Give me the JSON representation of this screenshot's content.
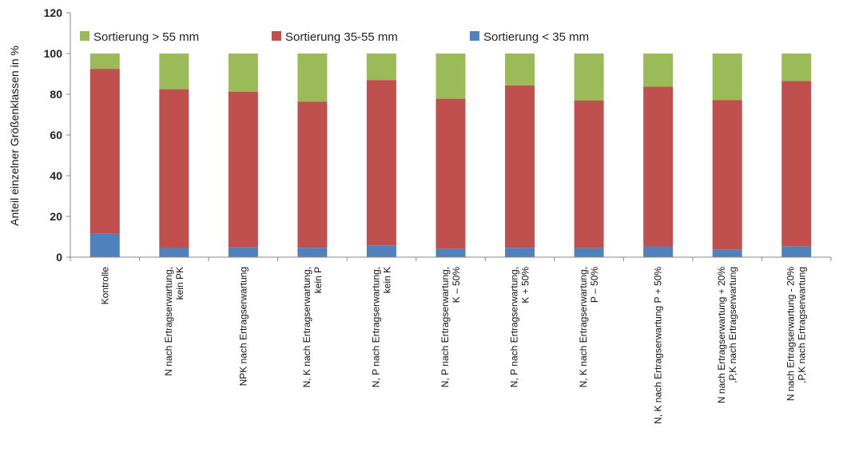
{
  "chart_data": {
    "type": "bar",
    "stacked": true,
    "ylabel": "Anteil einzelner Größenklassen in %",
    "xlabel": "",
    "ylim": [
      0,
      120
    ],
    "yticks": [
      0,
      20,
      40,
      60,
      80,
      100,
      120
    ],
    "grid": false,
    "legend_position": "top",
    "categories": [
      [
        "Kontrolle"
      ],
      [
        "N nach Ertragserwartung,",
        "kein PK"
      ],
      [
        "NPK nach Ertragserwartung"
      ],
      [
        "N, K nach Ertragserwartung,",
        "kein P"
      ],
      [
        "N, P nach Ertragserwartung,",
        "kein K"
      ],
      [
        "N, P nach Ertragserwartung,",
        "K – 50%"
      ],
      [
        "N, P nach Ertragserwartung,",
        "K + 50%"
      ],
      [
        "N, K nach Ertragserwartung,",
        "P – 50%"
      ],
      [
        "N, K nach Ertragserwartung P + 50%"
      ],
      [
        "N nach Ertragserwartung + 20%",
        ",P,K nach Ertragserwartung"
      ],
      [
        "N nach Ertragserwartung - 20%",
        ",P,K nach Ertragserwartung"
      ]
    ],
    "series": [
      {
        "name": "Sortierung < 35 mm",
        "color": "#4F81BD",
        "values": [
          11.5,
          4.5,
          4.8,
          4.6,
          5.8,
          4.2,
          4.6,
          4.4,
          5.3,
          3.8,
          5.4
        ]
      },
      {
        "name": "Sortierung 35-55 mm",
        "color": "#C0504D",
        "values": [
          81,
          78,
          76.5,
          71.8,
          81.2,
          73.6,
          79.8,
          72.6,
          78.5,
          73.4,
          81.1
        ]
      },
      {
        "name": "Sortierung > 55 mm",
        "color": "#9BBB59",
        "values": [
          7.5,
          17.5,
          18.7,
          23.6,
          13,
          22.2,
          15.6,
          23,
          16.2,
          22.8,
          13.5
        ]
      }
    ],
    "legend_order": [
      2,
      1,
      0
    ]
  }
}
